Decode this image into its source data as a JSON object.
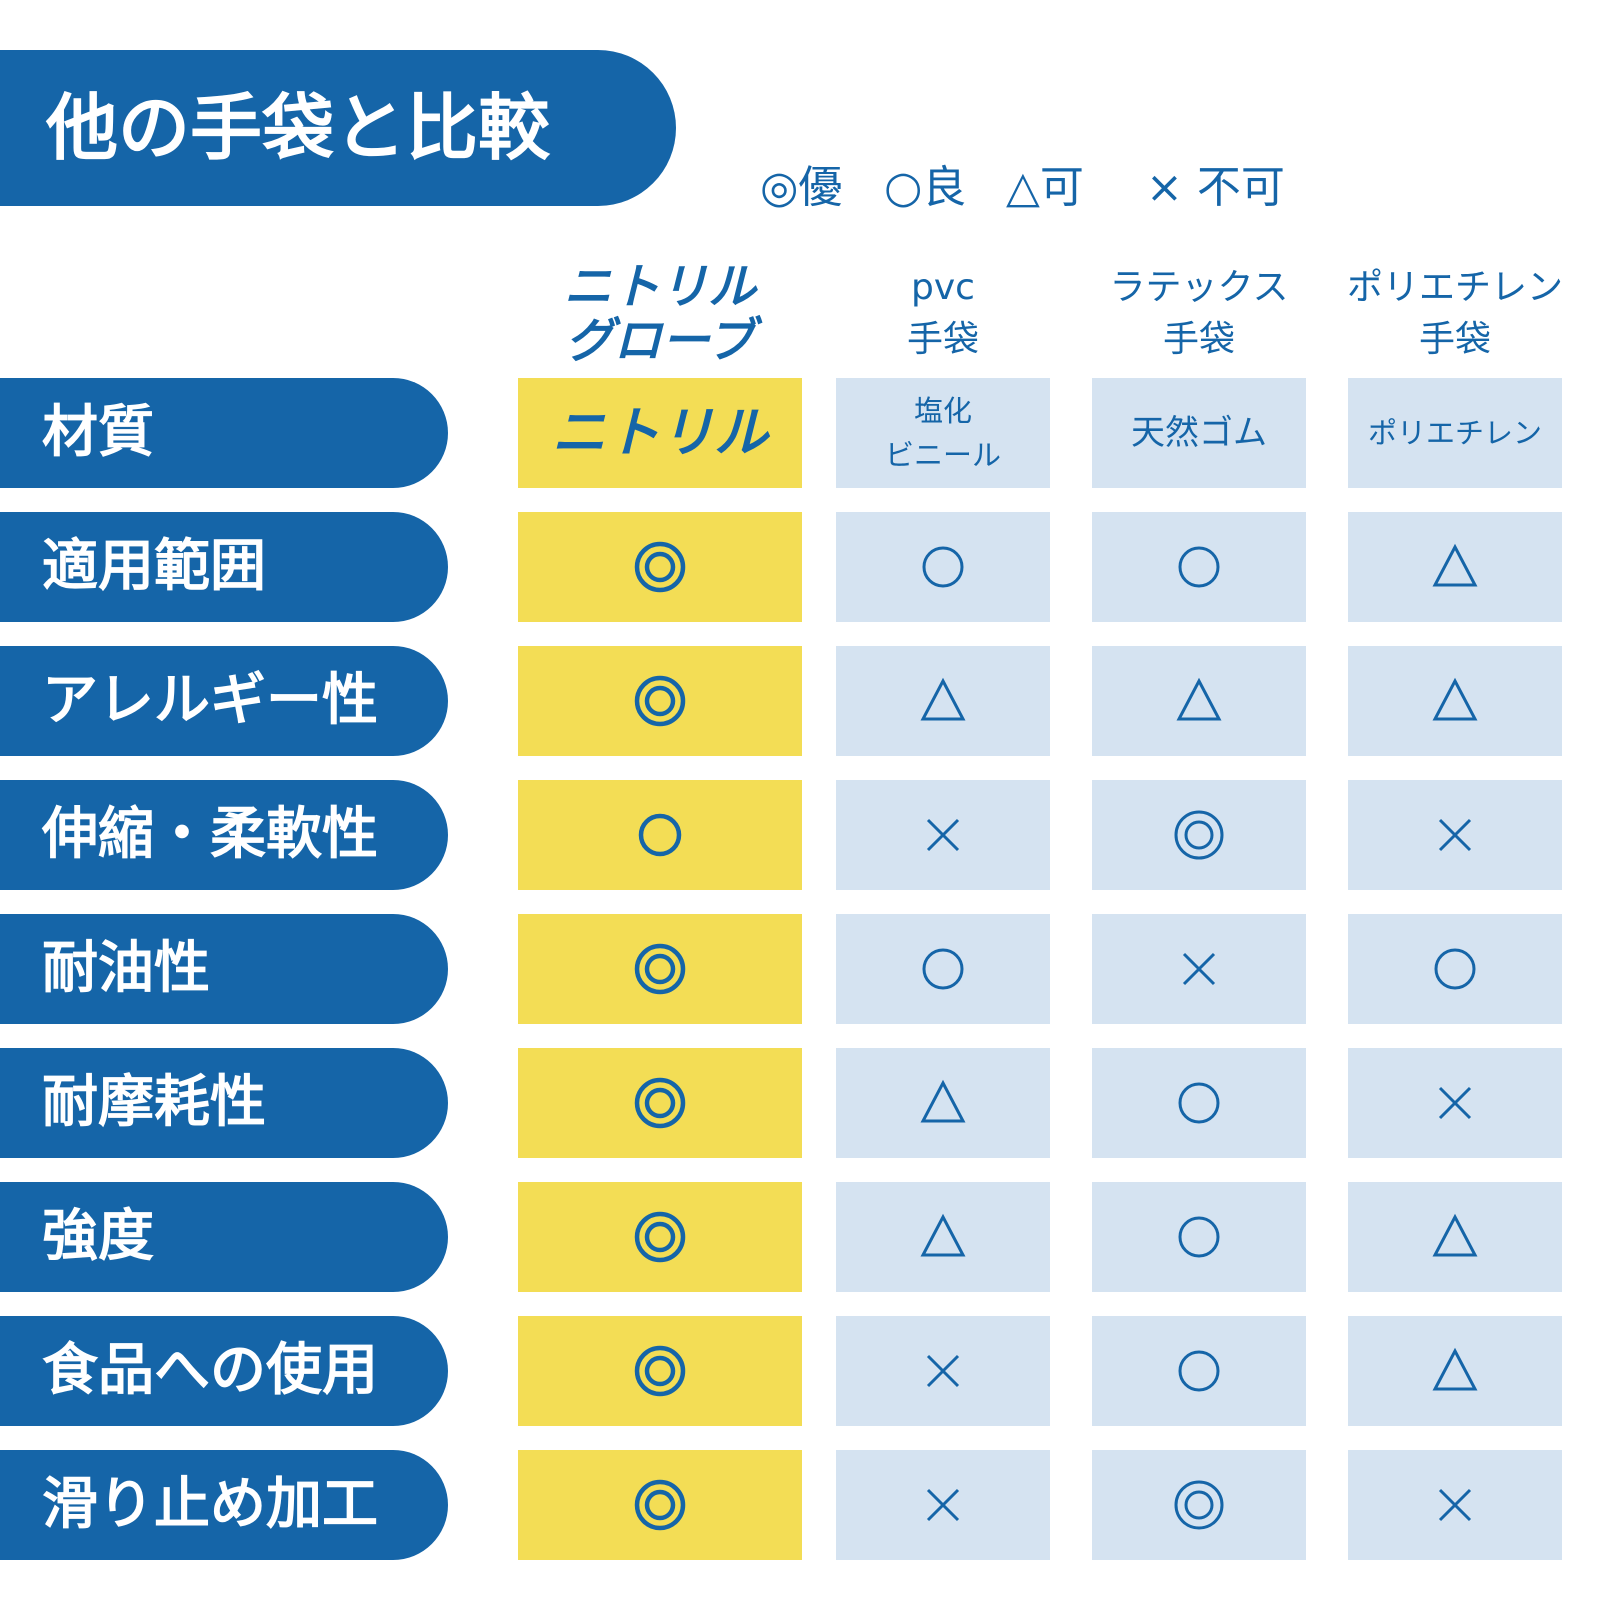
{
  "title": "他の手袋と比較",
  "legend": [
    {
      "symbol": "◎",
      "label": "優"
    },
    {
      "symbol": "○",
      "label": "良"
    },
    {
      "symbol": "△",
      "label": "可"
    },
    {
      "symbol": "×",
      "label": "不可"
    }
  ],
  "columns": [
    {
      "lines": [
        "ニトリル",
        "グローブ"
      ],
      "featured": true
    },
    {
      "lines": [
        "pvc",
        "手袋"
      ],
      "featured": false
    },
    {
      "lines": [
        "ラテックス",
        "手袋"
      ],
      "featured": false
    },
    {
      "lines": [
        "ポリエチレン",
        "手袋"
      ],
      "featured": false
    }
  ],
  "material_row": {
    "label": "材質",
    "values": [
      "ニトリル",
      "塩化\nビニール",
      "天然ゴム",
      "ポリエチレン"
    ]
  },
  "rating_rows": [
    {
      "label": "適用範囲",
      "ratings": [
        "◎",
        "○",
        "○",
        "△"
      ]
    },
    {
      "label": "アレルギー性",
      "ratings": [
        "◎",
        "△",
        "△",
        "△"
      ]
    },
    {
      "label": "伸縮・柔軟性",
      "ratings": [
        "○",
        "×",
        "◎",
        "×"
      ]
    },
    {
      "label": "耐油性",
      "ratings": [
        "◎",
        "○",
        "×",
        "○"
      ]
    },
    {
      "label": "耐摩耗性",
      "ratings": [
        "◎",
        "△",
        "○",
        "×"
      ]
    },
    {
      "label": "強度",
      "ratings": [
        "◎",
        "△",
        "○",
        "△"
      ]
    },
    {
      "label": "食品への使用",
      "ratings": [
        "◎",
        "×",
        "○",
        "△"
      ]
    },
    {
      "label": "滑り止め加工",
      "ratings": [
        "◎",
        "×",
        "◎",
        "×"
      ]
    }
  ],
  "colors": {
    "brand_blue": "#1565a8",
    "featured_yellow": "#f3dd55",
    "cell_light_blue": "#d5e3f1"
  }
}
